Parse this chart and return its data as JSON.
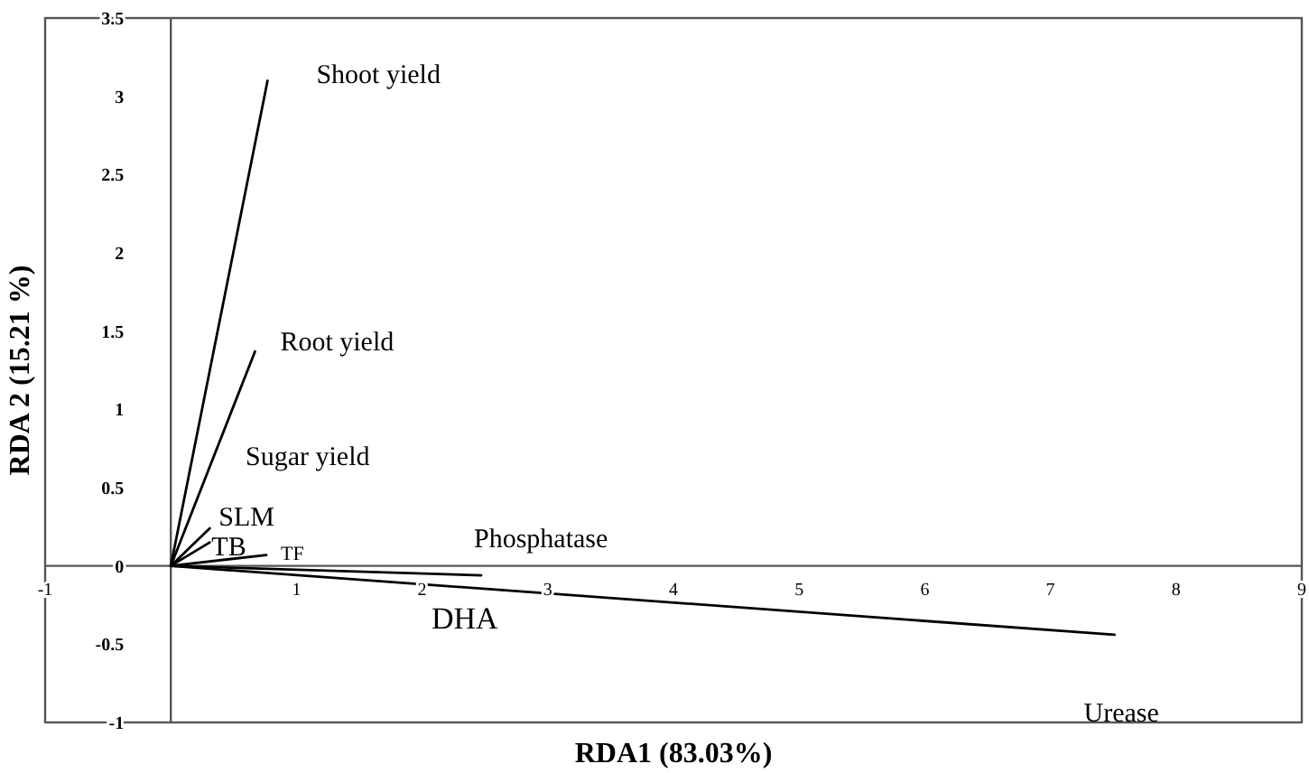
{
  "chart_data": {
    "type": "line",
    "xlabel": "RDA1 (83.03%)",
    "ylabel": "RDA 2 (15.21 %)",
    "xlim": [
      -1,
      9
    ],
    "ylim": [
      -1,
      3.5
    ],
    "xticks": [
      -1,
      1,
      2,
      3,
      4,
      5,
      6,
      7,
      8,
      9
    ],
    "yticks": [
      -1,
      -0.5,
      0,
      0.5,
      1,
      1.5,
      2,
      2.5,
      3,
      3.5
    ],
    "grid": false,
    "marker": "none",
    "line_style": "solid",
    "series": [
      {
        "name": "Shoot yield",
        "color": "#000000",
        "x": [
          0,
          0.77
        ],
        "values": [
          0,
          3.1
        ]
      },
      {
        "name": "Root yield",
        "color": "#000000",
        "x": [
          0,
          0.67
        ],
        "values": [
          0,
          1.37
        ]
      },
      {
        "name": "SLM",
        "color": "#000000",
        "x": [
          0,
          0.31
        ],
        "values": [
          0,
          0.24
        ]
      },
      {
        "name": "TB",
        "color": "#000000",
        "x": [
          0,
          0.31
        ],
        "values": [
          0,
          0.15
        ]
      },
      {
        "name": "TF",
        "color": "#000000",
        "x": [
          0,
          0.76
        ],
        "values": [
          0,
          0.07
        ]
      },
      {
        "name": "Phosphatase",
        "color": "#000000",
        "x": [
          0,
          2.47
        ],
        "values": [
          0,
          -0.06
        ]
      },
      {
        "name": "Urease",
        "color": "#000000",
        "x": [
          0,
          7.51
        ],
        "values": [
          0,
          -0.44
        ]
      }
    ],
    "annotations": [
      "Sugar yield",
      "DHA"
    ]
  }
}
